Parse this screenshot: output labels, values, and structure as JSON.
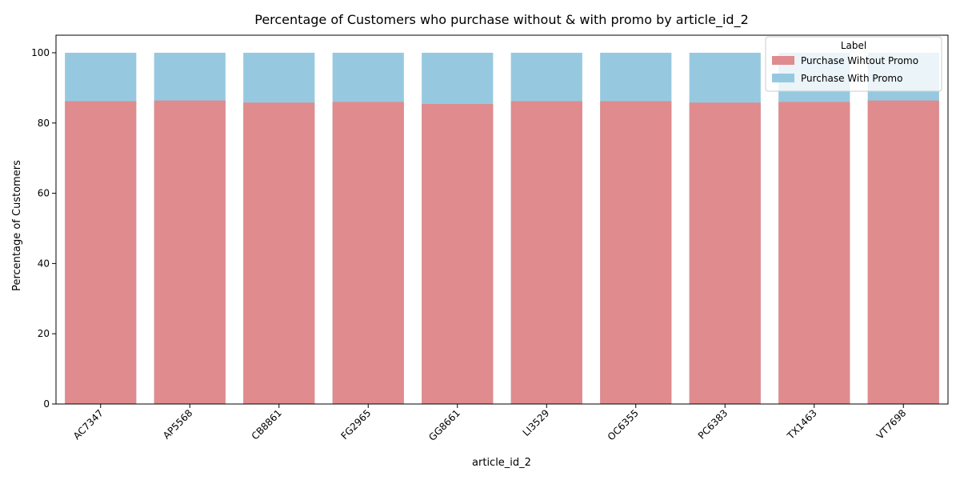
{
  "chart_data": {
    "type": "bar",
    "stacked_overlay": true,
    "title": "Percentage of Customers who purchase without & with promo by article_id_2",
    "xlabel": "article_id_2",
    "ylabel": "Percentage of Customers",
    "ylim": [
      0,
      105
    ],
    "yticks": [
      0,
      20,
      40,
      60,
      80,
      100
    ],
    "grid": false,
    "legend_position": "top-right",
    "legend_title": "Label",
    "categories": [
      "AC7347",
      "AP5568",
      "CB8861",
      "FG2965",
      "GG8661",
      "LI3529",
      "OC6355",
      "PC6383",
      "TX1463",
      "VT7698"
    ],
    "series": [
      {
        "name": "Purchase Wihtout Promo",
        "color": "#e08b8e",
        "values": [
          86.2,
          86.4,
          85.8,
          86.0,
          85.4,
          86.2,
          86.2,
          85.8,
          86.0,
          86.4
        ]
      },
      {
        "name": "Purchase With Promo",
        "color": "#96c9e0",
        "values": [
          100,
          100,
          100,
          100,
          100,
          100,
          100,
          100,
          100,
          100
        ]
      }
    ]
  }
}
